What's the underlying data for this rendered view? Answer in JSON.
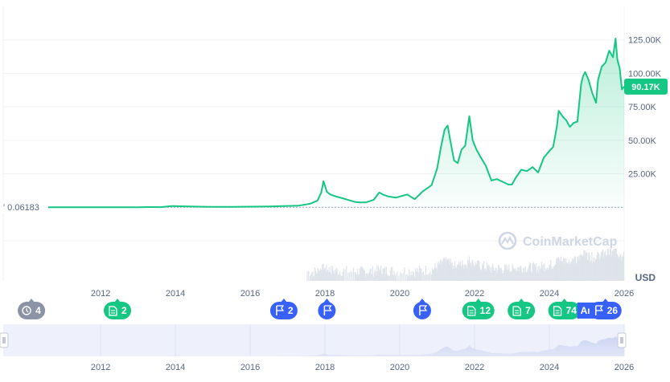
{
  "chart_data": {
    "type": "line",
    "currency": "USD",
    "current_price_label": "90.17K",
    "start_price_label": "0.06183",
    "watermark": "CoinMarketCap",
    "y_ticks": [
      "25.00K",
      "50.00K",
      "75.00K",
      "100.00K",
      "125.00K"
    ],
    "y_tick_values": [
      25000,
      50000,
      75000,
      100000,
      125000
    ],
    "ylim": [
      -55000,
      150000
    ],
    "xlim": [
      2010.6,
      2026.0
    ],
    "x_ticks": [
      "2012",
      "2014",
      "2016",
      "2018",
      "2020",
      "2022",
      "2024",
      "2026"
    ],
    "x_tick_values": [
      2012,
      2014,
      2016,
      2018,
      2020,
      2022,
      2024,
      2026
    ],
    "series": [
      {
        "x": [
          2010.6,
          2011.5,
          2012.0,
          2012.5,
          2013.0,
          2013.3,
          2013.6,
          2013.9,
          2014.5,
          2015.0,
          2015.5,
          2016.0,
          2016.5,
          2017.0,
          2017.3,
          2017.6,
          2017.8,
          2017.9,
          2017.96,
          2018.05,
          2018.15,
          2018.3,
          2018.5,
          2018.8,
          2018.95,
          2019.1,
          2019.3,
          2019.45,
          2019.55,
          2019.7,
          2019.9,
          2020.2,
          2020.4,
          2020.6,
          2020.85,
          2021.0,
          2021.1,
          2021.2,
          2021.28,
          2021.35,
          2021.45,
          2021.55,
          2021.65,
          2021.75,
          2021.86,
          2021.95,
          2022.05,
          2022.15,
          2022.3,
          2022.45,
          2022.6,
          2022.75,
          2022.9,
          2023.0,
          2023.1,
          2023.25,
          2023.4,
          2023.55,
          2023.7,
          2023.85,
          2024.0,
          2024.1,
          2024.2,
          2024.25,
          2024.35,
          2024.45,
          2024.55,
          2024.65,
          2024.75,
          2024.85,
          2024.9,
          2024.96,
          2025.05,
          2025.15,
          2025.25,
          2025.3,
          2025.4,
          2025.5,
          2025.6,
          2025.7,
          2025.77,
          2025.82,
          2025.88,
          2025.94,
          2026.0
        ],
        "y": [
          0.06,
          1,
          5,
          8,
          13,
          140,
          100,
          900,
          500,
          300,
          250,
          430,
          650,
          1000,
          1200,
          2600,
          5000,
          11000,
          19500,
          11500,
          9500,
          8000,
          6500,
          4000,
          3600,
          3700,
          5500,
          11000,
          9500,
          8000,
          7200,
          9500,
          6000,
          11500,
          16500,
          29000,
          45000,
          58000,
          61000,
          50000,
          35000,
          33000,
          43000,
          46000,
          68000,
          50000,
          43000,
          38000,
          31000,
          20000,
          21000,
          19000,
          17000,
          17000,
          22000,
          28000,
          27000,
          30000,
          26000,
          37000,
          42000,
          45000,
          60000,
          72000,
          68000,
          65000,
          60000,
          63000,
          64000,
          92000,
          98000,
          101000,
          95000,
          85000,
          78000,
          95000,
          105000,
          108000,
          117000,
          112000,
          126000,
          110000,
          104000,
          88000,
          90170
        ]
      }
    ],
    "navigator_range": [
      "2010.6",
      "2026.0"
    ]
  },
  "markers": [
    {
      "name": "history-marker",
      "icon": "history-icon",
      "label": "4",
      "color": "#8b93a7",
      "year": 2010.15
    },
    {
      "name": "news-marker-2012",
      "icon": "document-icon",
      "label": "2",
      "color": "#16c784",
      "year": 2012.45
    },
    {
      "name": "event-marker-2017",
      "icon": "flag-icon",
      "label": "2",
      "color": "#3861fb",
      "year": 2016.9
    },
    {
      "name": "event-marker-2018",
      "icon": "flag-icon",
      "label": "",
      "color": "#3861fb",
      "year": 2018.05
    },
    {
      "name": "event-marker-2020",
      "icon": "flag-icon",
      "label": "",
      "color": "#3861fb",
      "year": 2020.6
    },
    {
      "name": "news-marker-2022",
      "icon": "document-icon",
      "label": "12",
      "color": "#16c784",
      "year": 2022.1
    },
    {
      "name": "news-marker-2023",
      "icon": "document-icon",
      "label": "7",
      "color": "#16c784",
      "year": 2023.25
    },
    {
      "name": "news-marker-2024",
      "icon": "document-icon",
      "label": "74",
      "color": "#16c784",
      "year": 2024.4
    },
    {
      "name": "event-marker-2025",
      "icon": "flag-icon",
      "label": "26",
      "color": "#3861fb",
      "year": 2025.5
    }
  ],
  "overlap_label": "Ana",
  "colors": {
    "line": "#16c784",
    "news": "#16c784",
    "event": "#3861fb",
    "history": "#8b93a7",
    "volume": "#cfd6e4",
    "navigator": "#e6ebfb"
  }
}
